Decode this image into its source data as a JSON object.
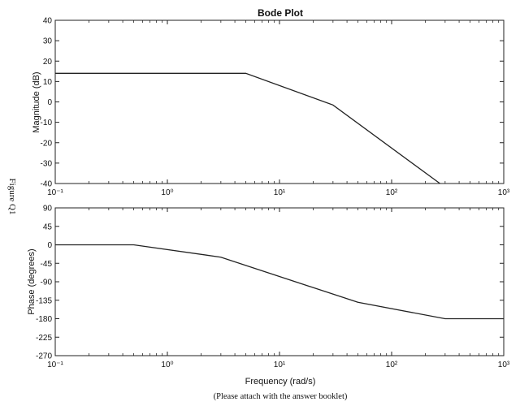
{
  "side_label": "Figure Q1",
  "footer_note": "(Please attach with the answer booklet)",
  "chart_data": [
    {
      "type": "line",
      "title": "Bode Plot",
      "xlabel": "",
      "ylabel": "Magnitude (dB)",
      "x_scale": "log",
      "xlim": [
        0.1,
        1000
      ],
      "ylim": [
        -40,
        40
      ],
      "x_ticks": [
        0.1,
        1,
        10,
        100,
        1000
      ],
      "x_tick_labels": [
        "10⁻¹",
        "10⁰",
        "10¹",
        "10²",
        "10³"
      ],
      "y_ticks": [
        40,
        30,
        20,
        10,
        0,
        -10,
        -20,
        -30,
        -40
      ],
      "grid": false,
      "series": [
        {
          "x": [
            0.1,
            5,
            30,
            270
          ],
          "y": [
            14,
            14,
            -1.5,
            -40
          ]
        }
      ]
    },
    {
      "type": "line",
      "title": "",
      "xlabel": "Frequency (rad/s)",
      "ylabel": "Phase (degrees)",
      "x_scale": "log",
      "xlim": [
        0.1,
        1000
      ],
      "ylim": [
        -270,
        90
      ],
      "x_ticks": [
        0.1,
        1,
        10,
        100,
        1000
      ],
      "x_tick_labels": [
        "10⁻¹",
        "10⁰",
        "10¹",
        "10²",
        "10³"
      ],
      "y_ticks": [
        90,
        45,
        0,
        -45,
        -90,
        -135,
        -180,
        -225,
        -270
      ],
      "grid": false,
      "series": [
        {
          "x": [
            0.1,
            0.5,
            3,
            50,
            300,
            1000
          ],
          "y": [
            0,
            0,
            -30,
            -140,
            -180,
            -180
          ]
        }
      ]
    }
  ]
}
